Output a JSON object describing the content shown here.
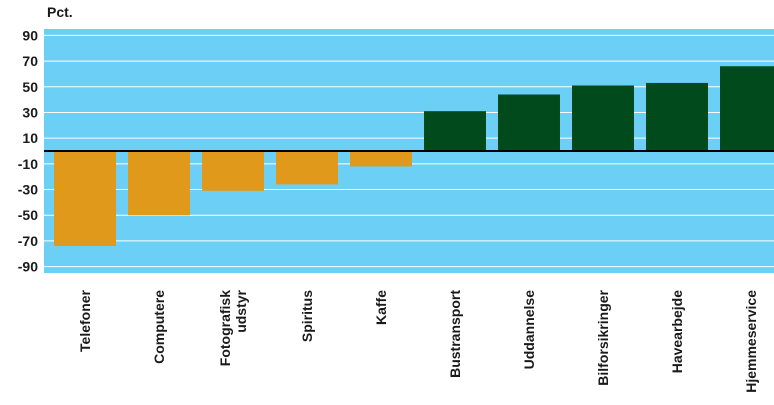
{
  "chart_data": {
    "type": "bar",
    "title": "",
    "ylabel": "Pct.",
    "xlabel": "",
    "ylim": [
      -95,
      95
    ],
    "yticks": [
      90,
      70,
      50,
      30,
      10,
      -10,
      -30,
      -50,
      -70,
      -90
    ],
    "grid": true,
    "categories": [
      [
        "Telefoner"
      ],
      [
        "Computere"
      ],
      [
        "Fotografisk",
        "udstyr"
      ],
      [
        "Spiritus"
      ],
      [
        "Kaffe"
      ],
      [
        "Bustransport"
      ],
      [
        "Uddannelse"
      ],
      [
        "Bilforsikringer"
      ],
      [
        "Havearbejde"
      ],
      [
        "Hjemmeservice"
      ]
    ],
    "values": [
      -74,
      -50,
      -31,
      -26,
      -12,
      31,
      44,
      51,
      53,
      66
    ],
    "colors": {
      "background": "#6ccff6",
      "negative": "#e1991c",
      "positive": "#004a1c",
      "zero_line": "#000000",
      "grid": "#ffffff"
    }
  }
}
